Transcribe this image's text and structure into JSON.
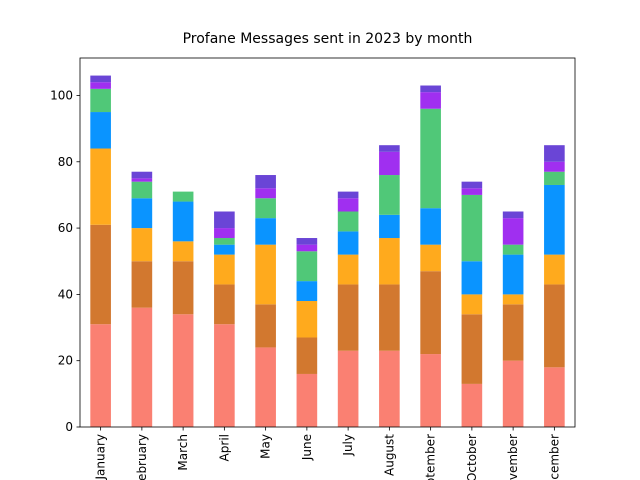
{
  "chart_data": {
    "type": "stacked_bar",
    "title": "Profane Messages sent in 2023 by month",
    "categories": [
      "January",
      "February",
      "March",
      "April",
      "May",
      "June",
      "July",
      "August",
      "September",
      "October",
      "November",
      "December"
    ],
    "series": [
      {
        "color": "#fa8072",
        "values": [
          31,
          36,
          34,
          31,
          24,
          16,
          23,
          23,
          22,
          13,
          20,
          18
        ]
      },
      {
        "color": "#d2782f",
        "values": [
          30,
          14,
          16,
          12,
          13,
          11,
          20,
          20,
          25,
          21,
          17,
          25
        ]
      },
      {
        "color": "#ffaa1d",
        "values": [
          23,
          10,
          6,
          9,
          18,
          11,
          9,
          14,
          8,
          6,
          3,
          9
        ]
      },
      {
        "color": "#0a94ff",
        "values": [
          11,
          9,
          12,
          3,
          8,
          6,
          7,
          7,
          11,
          10,
          12,
          21
        ]
      },
      {
        "color": "#50c878",
        "values": [
          7,
          5,
          3,
          2,
          6,
          9,
          6,
          12,
          30,
          20,
          3,
          4
        ]
      },
      {
        "color": "#a02ff0",
        "values": [
          2,
          1,
          0,
          3,
          3,
          2,
          4,
          7,
          5,
          2,
          8,
          3
        ]
      },
      {
        "color": "#6a45d6",
        "values": [
          2,
          2,
          0,
          5,
          4,
          2,
          2,
          2,
          2,
          2,
          2,
          5
        ]
      }
    ],
    "ylim": [
      0,
      111.3
    ],
    "yticks": [
      0,
      20,
      40,
      60,
      80,
      100
    ]
  }
}
